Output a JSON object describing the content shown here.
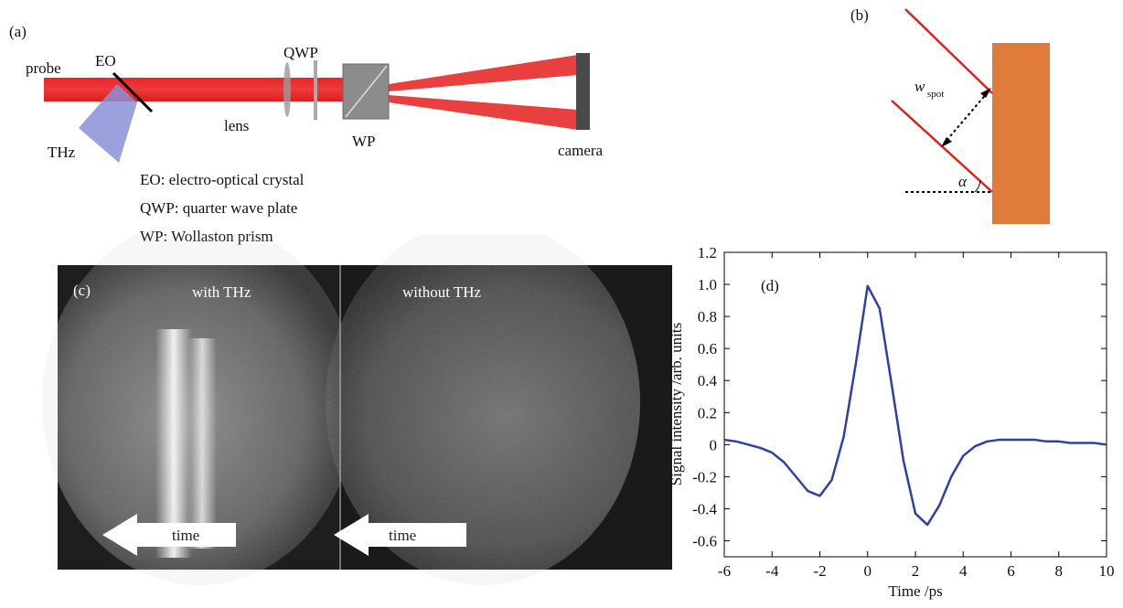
{
  "panel_a": {
    "label": "(a)",
    "probe": "probe",
    "eo": "EO",
    "qwp": "QWP",
    "lens": "lens",
    "wp": "WP",
    "thz": "THz",
    "camera": "camera",
    "legend": [
      "EO: electro-optical crystal",
      "QWP: quarter wave plate",
      "WP: Wollaston prism"
    ]
  },
  "panel_b": {
    "label": "(b)",
    "w": "w",
    "w_sub": "spot",
    "alpha": "α"
  },
  "panel_c": {
    "label": "(c)",
    "left_caption": "with THz",
    "right_caption": "without THz",
    "arrows": [
      "time",
      "time"
    ]
  },
  "chart_data": {
    "type": "line",
    "label": "(d)",
    "x_label": "Time /ps",
    "y_label": "Signal intensity /arb. units",
    "x": [
      -6,
      -5.5,
      -5,
      -4.5,
      -4,
      -3.5,
      -3,
      -2.5,
      -2,
      -1.5,
      -1,
      -0.5,
      0,
      0.5,
      1,
      1.5,
      2,
      2.5,
      3,
      3.5,
      4,
      4.5,
      5,
      5.5,
      6,
      6.5,
      7,
      7.5,
      8,
      8.5,
      9,
      9.5,
      10
    ],
    "values": [
      0.03,
      0.02,
      0.0,
      -0.02,
      -0.05,
      -0.11,
      -0.2,
      -0.29,
      -0.32,
      -0.22,
      0.05,
      0.5,
      0.99,
      0.85,
      0.38,
      -0.1,
      -0.43,
      -0.5,
      -0.38,
      -0.2,
      -0.07,
      -0.01,
      0.02,
      0.03,
      0.03,
      0.03,
      0.03,
      0.02,
      0.02,
      0.01,
      0.01,
      0.01,
      0.0
    ],
    "color": "#2e3fa8",
    "xlim": [
      -6,
      10
    ],
    "xticks": [
      -6,
      -4,
      -2,
      0,
      2,
      4,
      6,
      8,
      10
    ],
    "ylim": [
      -0.7,
      1.2
    ],
    "yticks": [
      -0.6,
      -0.4,
      -0.2,
      0,
      0.2,
      0.4,
      0.6,
      0.8,
      {
        "value": 1,
        "label": "1.0"
      },
      1.2
    ]
  }
}
